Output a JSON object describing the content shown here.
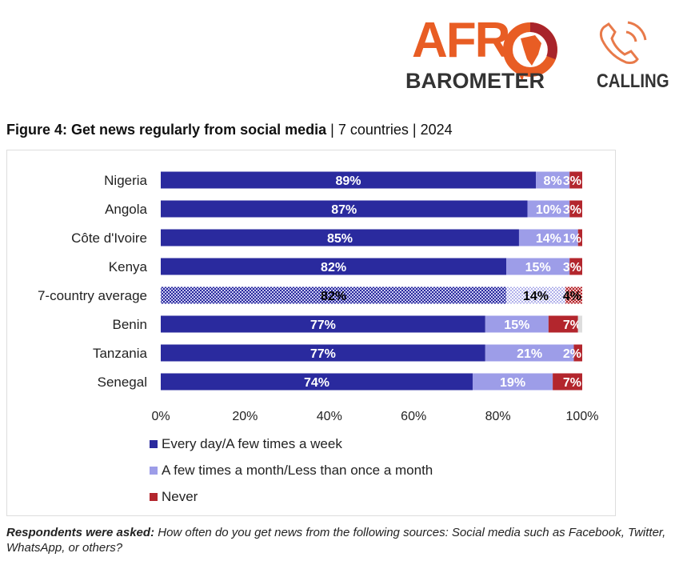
{
  "logo": {
    "word1": "AFR",
    "word2": "BAROMETER",
    "word3": "CALLING"
  },
  "figure": {
    "title": "Figure 4: Get news regularly from social media",
    "meta1": "7 countries",
    "meta2": "2024"
  },
  "chart_data": {
    "type": "bar",
    "orientation": "horizontal-stacked",
    "categories": [
      "Nigeria",
      "Angola",
      "Côte d'Ivoire",
      "Kenya",
      "7-country average",
      "Benin",
      "Tanzania",
      "Senegal"
    ],
    "series": [
      {
        "name": "Every day/A few times a week",
        "color": "#2a2a9e",
        "values": [
          89,
          87,
          85,
          82,
          82,
          77,
          77,
          74
        ]
      },
      {
        "name": "A few times a month/Less than once a month",
        "color": "#9d9de8",
        "values": [
          8,
          10,
          14,
          15,
          14,
          15,
          21,
          19
        ]
      },
      {
        "name": "Never",
        "color": "#b3262d",
        "values": [
          3,
          3,
          1,
          3,
          4,
          7,
          2,
          7
        ]
      }
    ],
    "xlim": [
      0,
      100
    ],
    "xticks": [
      "0%",
      "20%",
      "40%",
      "60%",
      "80%",
      "100%"
    ],
    "highlight": "7-country average",
    "legend_position": "bottom-left"
  },
  "note": {
    "label": "Respondents were asked:",
    "text": "How often do you get news from the following sources: Social media such as Facebook, Twitter, WhatsApp, or others?"
  }
}
